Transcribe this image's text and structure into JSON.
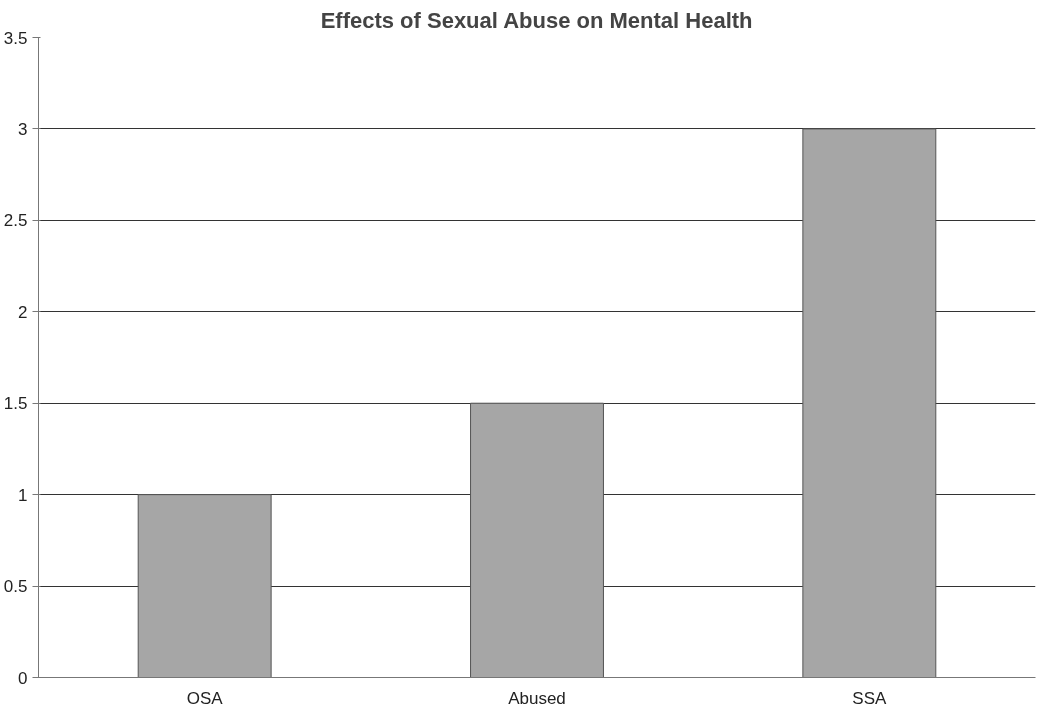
{
  "chart_data": {
    "type": "bar",
    "title": "Effects of Sexual Abuse on Mental Health",
    "categories": [
      "OSA",
      "Abused",
      "SSA"
    ],
    "values": [
      1,
      1.5,
      3
    ],
    "color": "#a6a6a6",
    "ylim": [
      0,
      3.5
    ],
    "yticks": [
      0,
      0.5,
      1,
      1.5,
      2,
      2.5,
      3,
      3.5
    ],
    "grid": "y"
  }
}
